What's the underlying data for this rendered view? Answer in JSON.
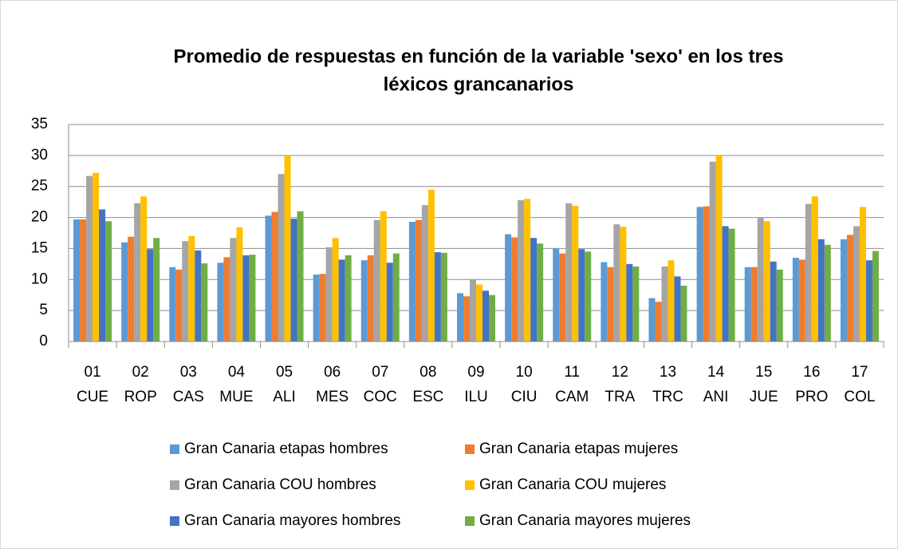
{
  "chart_data": {
    "type": "bar",
    "title": [
      "Promedio de respuestas en función de la variable 'sexo' en los tres",
      "léxicos grancanarios"
    ],
    "categories": [
      [
        "01",
        "CUE"
      ],
      [
        "02",
        "ROP"
      ],
      [
        "03",
        "CAS"
      ],
      [
        "04",
        "MUE"
      ],
      [
        "05",
        "ALI"
      ],
      [
        "06",
        "MES"
      ],
      [
        "07",
        "COC"
      ],
      [
        "08",
        "ESC"
      ],
      [
        "09",
        "ILU"
      ],
      [
        "10",
        "CIU"
      ],
      [
        "11",
        "CAM"
      ],
      [
        "12",
        "TRA"
      ],
      [
        "13",
        "TRC"
      ],
      [
        "14",
        "ANI"
      ],
      [
        "15",
        "JUE"
      ],
      [
        "16",
        "PRO"
      ],
      [
        "17",
        "COL"
      ]
    ],
    "series": [
      {
        "name": "Gran Canaria etapas hombres",
        "color": "#5b9bd5",
        "values": [
          19.7,
          16.0,
          12.0,
          12.7,
          20.3,
          10.8,
          13.1,
          19.3,
          7.8,
          17.3,
          15.0,
          12.8,
          7.0,
          21.7,
          12.0,
          13.5,
          16.5
        ]
      },
      {
        "name": "Gran Canaria etapas mujeres",
        "color": "#ed7d31",
        "values": [
          19.7,
          16.9,
          11.6,
          13.6,
          20.9,
          10.9,
          13.9,
          19.6,
          7.3,
          16.8,
          14.2,
          12.0,
          6.4,
          21.8,
          12.0,
          13.2,
          17.2
        ]
      },
      {
        "name": "Gran Canaria COU hombres",
        "color": "#a5a5a5",
        "values": [
          26.7,
          22.3,
          16.2,
          16.7,
          27.0,
          15.2,
          19.6,
          22.0,
          10.0,
          22.8,
          22.3,
          18.9,
          12.1,
          29.0,
          20.0,
          22.2,
          18.6
        ]
      },
      {
        "name": "Gran Canaria COU mujeres",
        "color": "#ffc000",
        "values": [
          27.2,
          23.4,
          17.0,
          18.4,
          30.0,
          16.7,
          21.0,
          24.5,
          9.2,
          23.0,
          21.9,
          18.5,
          13.1,
          30.1,
          19.4,
          23.4,
          21.7
        ]
      },
      {
        "name": "Gran Canaria mayores hombres",
        "color": "#4472c4",
        "values": [
          21.3,
          14.9,
          14.7,
          13.9,
          19.8,
          13.2,
          12.7,
          14.4,
          8.2,
          16.7,
          14.9,
          12.5,
          10.5,
          18.6,
          12.9,
          16.5,
          13.1
        ]
      },
      {
        "name": "Gran Canaria mayores mujeres",
        "color": "#70ad47",
        "values": [
          19.4,
          16.7,
          12.6,
          14.0,
          21.0,
          13.9,
          14.2,
          14.3,
          7.5,
          15.8,
          14.5,
          12.1,
          9.0,
          18.2,
          11.6,
          15.6,
          14.6
        ]
      }
    ],
    "ylim": [
      0,
      35
    ],
    "yticks": [
      0,
      5,
      10,
      15,
      20,
      25,
      30,
      35
    ],
    "grid": true
  }
}
